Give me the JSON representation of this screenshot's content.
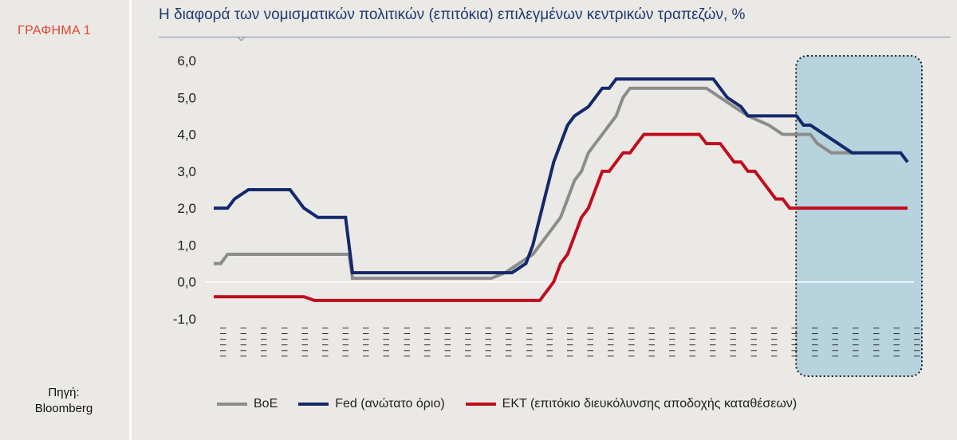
{
  "figure_label": "ΓΡΑΦΗΜΑ 1",
  "source": {
    "label": "Πηγή:",
    "value": "Bloomberg"
  },
  "colors": {
    "boe": "#8c8c8c",
    "fed": "#13296b",
    "ecb": "#c00d1e",
    "highlight": "#b6d3de",
    "title": "#1d3a6e",
    "label": "#e0452f"
  },
  "chart_data": {
    "type": "line",
    "title": "Η διαφορά των νομισματικών πολιτικών (επιτόκια) επιλεγμένων κεντρικών τραπεζών, %",
    "ylim": [
      -1.0,
      6.0
    ],
    "yticks": [
      "6,0",
      "5,0",
      "4,0",
      "3,0",
      "2,0",
      "1,0",
      "0,0",
      "-1,0"
    ],
    "x_tick_labels": [
      "I",
      "I",
      "I",
      "I",
      "I",
      "I",
      "I",
      "I",
      "I",
      "I",
      "I",
      "I",
      "I",
      "I",
      "I",
      "I",
      "I",
      "I",
      "I",
      "I",
      "I",
      "I",
      "I",
      "I",
      "I",
      "I",
      "I",
      "I",
      "I",
      "I",
      "I",
      "I",
      "I",
      "I",
      "I"
    ],
    "grid": false,
    "legend_position": "bottom",
    "highlight_from_x": 0.86,
    "series": [
      {
        "name": "BoE",
        "key": "boe",
        "points": [
          [
            0,
            0.5
          ],
          [
            0.01,
            0.5
          ],
          [
            0.02,
            0.75
          ],
          [
            0.195,
            0.75
          ],
          [
            0.2,
            0.1
          ],
          [
            0.4,
            0.1
          ],
          [
            0.42,
            0.25
          ],
          [
            0.44,
            0.5
          ],
          [
            0.46,
            0.75
          ],
          [
            0.47,
            1.0
          ],
          [
            0.48,
            1.25
          ],
          [
            0.49,
            1.5
          ],
          [
            0.5,
            1.75
          ],
          [
            0.51,
            2.25
          ],
          [
            0.52,
            2.75
          ],
          [
            0.53,
            3.0
          ],
          [
            0.54,
            3.5
          ],
          [
            0.55,
            3.75
          ],
          [
            0.56,
            4.0
          ],
          [
            0.57,
            4.25
          ],
          [
            0.58,
            4.5
          ],
          [
            0.59,
            5.0
          ],
          [
            0.6,
            5.25
          ],
          [
            0.71,
            5.25
          ],
          [
            0.73,
            5.0
          ],
          [
            0.75,
            4.75
          ],
          [
            0.77,
            4.5
          ],
          [
            0.8,
            4.25
          ],
          [
            0.82,
            4.0
          ],
          [
            0.86,
            4.0
          ],
          [
            0.87,
            3.75
          ],
          [
            0.89,
            3.5
          ],
          [
            0.93,
            3.5
          ]
        ]
      },
      {
        "name": "Fed (ανώτατο όριο)",
        "key": "fed",
        "points": [
          [
            0,
            2.0
          ],
          [
            0.02,
            2.0
          ],
          [
            0.03,
            2.25
          ],
          [
            0.05,
            2.5
          ],
          [
            0.11,
            2.5
          ],
          [
            0.12,
            2.25
          ],
          [
            0.13,
            2.0
          ],
          [
            0.15,
            1.75
          ],
          [
            0.19,
            1.75
          ],
          [
            0.2,
            0.25
          ],
          [
            0.43,
            0.25
          ],
          [
            0.45,
            0.5
          ],
          [
            0.46,
            1.0
          ],
          [
            0.47,
            1.75
          ],
          [
            0.48,
            2.5
          ],
          [
            0.49,
            3.25
          ],
          [
            0.5,
            3.75
          ],
          [
            0.51,
            4.25
          ],
          [
            0.52,
            4.5
          ],
          [
            0.54,
            4.75
          ],
          [
            0.55,
            5.0
          ],
          [
            0.56,
            5.25
          ],
          [
            0.57,
            5.25
          ],
          [
            0.58,
            5.5
          ],
          [
            0.72,
            5.5
          ],
          [
            0.73,
            5.25
          ],
          [
            0.74,
            5.0
          ],
          [
            0.76,
            4.75
          ],
          [
            0.77,
            4.5
          ],
          [
            0.84,
            4.5
          ],
          [
            0.85,
            4.25
          ],
          [
            0.86,
            4.25
          ],
          [
            0.88,
            4.0
          ],
          [
            0.9,
            3.75
          ],
          [
            0.92,
            3.5
          ],
          [
            0.99,
            3.5
          ],
          [
            1.0,
            3.25
          ]
        ]
      },
      {
        "name": "ΕΚΤ (επιτόκιο διευκόλυνσης αποδοχής καταθέσεων)",
        "key": "ecb",
        "points": [
          [
            0,
            -0.4
          ],
          [
            0.13,
            -0.4
          ],
          [
            0.145,
            -0.5
          ],
          [
            0.47,
            -0.5
          ],
          [
            0.48,
            -0.25
          ],
          [
            0.49,
            0.0
          ],
          [
            0.5,
            0.5
          ],
          [
            0.51,
            0.75
          ],
          [
            0.52,
            1.25
          ],
          [
            0.53,
            1.75
          ],
          [
            0.54,
            2.0
          ],
          [
            0.55,
            2.5
          ],
          [
            0.56,
            3.0
          ],
          [
            0.57,
            3.0
          ],
          [
            0.58,
            3.25
          ],
          [
            0.59,
            3.5
          ],
          [
            0.6,
            3.5
          ],
          [
            0.61,
            3.75
          ],
          [
            0.62,
            4.0
          ],
          [
            0.7,
            4.0
          ],
          [
            0.71,
            3.75
          ],
          [
            0.73,
            3.75
          ],
          [
            0.74,
            3.5
          ],
          [
            0.75,
            3.25
          ],
          [
            0.76,
            3.25
          ],
          [
            0.77,
            3.0
          ],
          [
            0.78,
            3.0
          ],
          [
            0.79,
            2.75
          ],
          [
            0.8,
            2.5
          ],
          [
            0.81,
            2.25
          ],
          [
            0.82,
            2.25
          ],
          [
            0.83,
            2.0
          ],
          [
            1.0,
            2.0
          ]
        ]
      }
    ]
  }
}
